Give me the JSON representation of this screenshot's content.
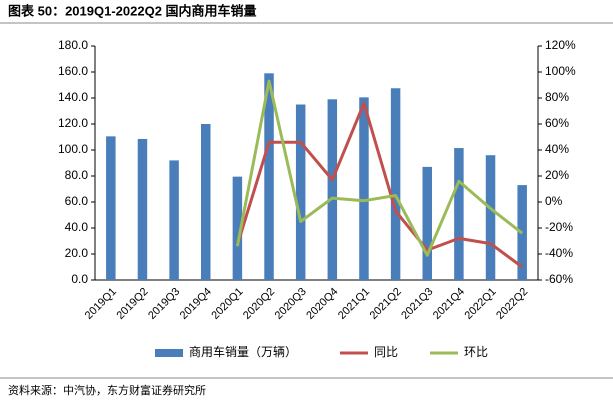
{
  "chart_data": {
    "type": "bar_line",
    "title": "图表 50：2019Q1-2022Q2 国内商用车销量",
    "source": "资料来源：中汽协，东方财富证券研究所",
    "categories": [
      "2019Q1",
      "2019Q2",
      "2019Q3",
      "2019Q4",
      "2020Q1",
      "2020Q2",
      "2020Q3",
      "2020Q4",
      "2021Q1",
      "2021Q2",
      "2021Q3",
      "2021Q4",
      "2022Q1",
      "2022Q2"
    ],
    "series": [
      {
        "name": "商用车销量（万辆）",
        "type": "bar",
        "color": "#4a7ebb",
        "values": [
          110.5,
          108.5,
          92,
          120,
          79.5,
          159,
          135,
          139,
          140.5,
          147.5,
          87,
          101.5,
          96,
          73
        ]
      },
      {
        "name": "同比",
        "type": "line",
        "axis": "y2",
        "color": "#c0504d",
        "values": [
          null,
          null,
          null,
          null,
          -33,
          46,
          46,
          17,
          76,
          -7,
          -37,
          -28,
          -32,
          -50
        ]
      },
      {
        "name": "环比",
        "type": "line",
        "axis": "y2",
        "color": "#9bbb59",
        "values": [
          null,
          null,
          null,
          null,
          -34,
          93,
          -15,
          3,
          1,
          5,
          -41,
          16,
          -5,
          -24
        ]
      }
    ],
    "ylim": [
      0,
      180
    ],
    "yticks": [
      {
        "value": 0,
        "label": "0.0"
      },
      {
        "value": 20,
        "label": "20.0"
      },
      {
        "value": 40,
        "label": "40.0"
      },
      {
        "value": 60,
        "label": "60.0"
      },
      {
        "value": 80,
        "label": "80.0"
      },
      {
        "value": 100,
        "label": "100.0"
      },
      {
        "value": 120,
        "label": "120.0"
      },
      {
        "value": 140,
        "label": "140.0"
      },
      {
        "value": 160,
        "label": "160.0"
      },
      {
        "value": 180,
        "label": "180.0"
      }
    ],
    "y2lim": [
      -60,
      120
    ],
    "y2ticks": [
      {
        "value": -60,
        "label": "-60%"
      },
      {
        "value": -40,
        "label": "-40%"
      },
      {
        "value": -20,
        "label": "-20%"
      },
      {
        "value": 0,
        "label": "0%"
      },
      {
        "value": 20,
        "label": "20%"
      },
      {
        "value": 40,
        "label": "40%"
      },
      {
        "value": 60,
        "label": "60%"
      },
      {
        "value": 80,
        "label": "80%"
      },
      {
        "value": 100,
        "label": "100%"
      },
      {
        "value": 120,
        "label": "120%"
      }
    ]
  }
}
